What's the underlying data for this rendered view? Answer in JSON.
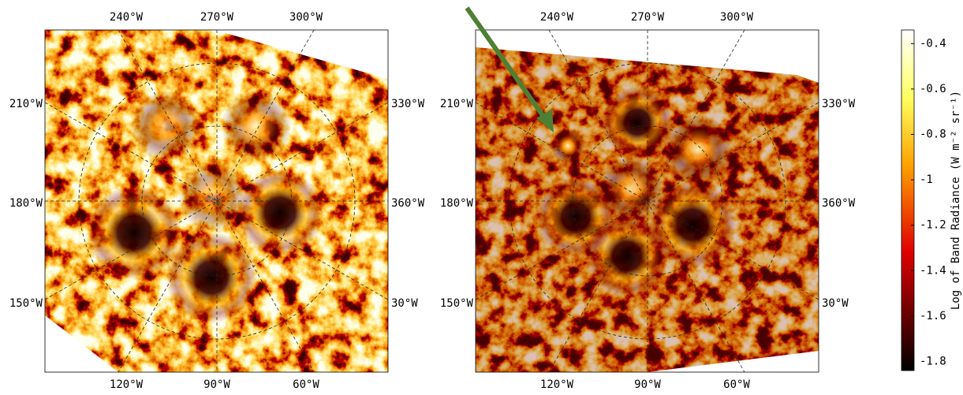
{
  "panels": [
    {
      "top": [
        "240°W",
        "270°W",
        "300°W"
      ],
      "left": [
        "210°W",
        "180°W",
        "150°W"
      ],
      "right": [
        "330°W",
        "360°W",
        "30°W"
      ],
      "bottom": [
        "120°W",
        "90°W",
        "60°W"
      ]
    },
    {
      "top": [
        "240°W",
        "270°W",
        "300°W"
      ],
      "left": [
        "210°W",
        "180°W",
        "150°W"
      ],
      "right": [
        "330°W",
        "360°W",
        "30°W"
      ],
      "bottom": [
        "120°W",
        "90°W",
        "60°W"
      ]
    }
  ],
  "colorbar": {
    "label": "Log of Band Radiance (W m⁻² sr⁻¹)",
    "ylim": [
      -1.84,
      -0.34
    ],
    "yticks": [
      -0.4,
      -0.6,
      -0.8,
      -1,
      -1.2,
      -1.4,
      -1.6,
      -1.8
    ]
  }
}
